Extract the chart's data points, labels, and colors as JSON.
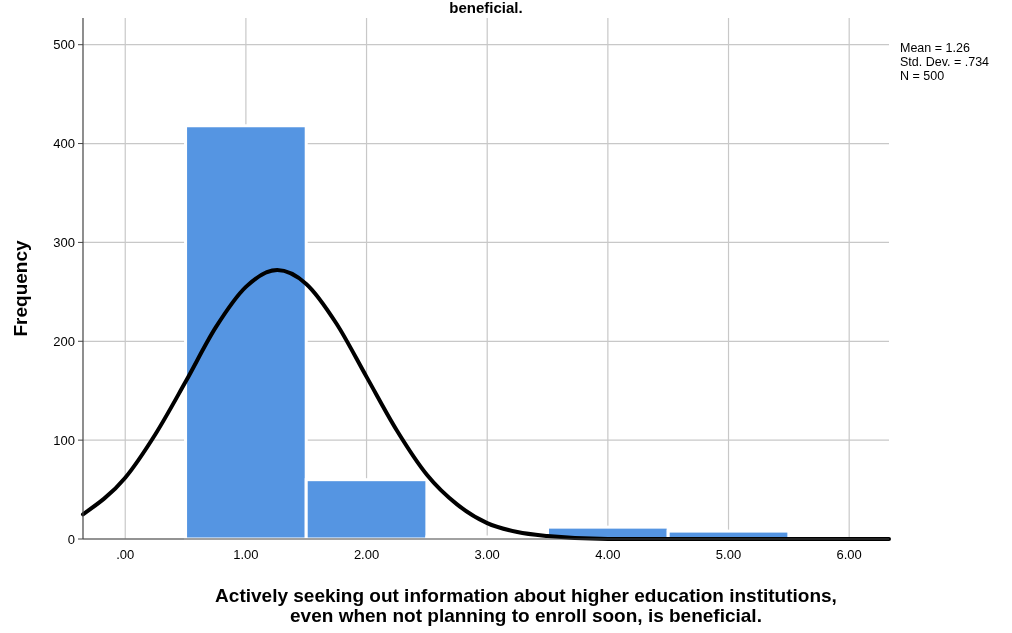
{
  "chart_data": {
    "type": "histogram",
    "title": "beneficial.",
    "xlabel": "Actively seeking out information about higher education institutions,\neven when not planning to enroll soon, is beneficial.",
    "ylabel": "Frequency",
    "bins": [
      0.5,
      1.5,
      2.5,
      3.5,
      4.5,
      5.5
    ],
    "values": [
      418,
      60,
      2,
      12,
      8
    ],
    "color": "#5595e2",
    "series": [
      {
        "type": "line",
        "color": "#000000",
        "x": [
          -0.35,
          0,
          0.25,
          0.5,
          0.75,
          1,
          1.26,
          1.5,
          1.75,
          2,
          2.25,
          2.5,
          2.75,
          3,
          3.25,
          3.5,
          4,
          5,
          6.33
        ],
        "values": [
          25,
          62,
          106,
          159,
          214,
          255,
          272,
          258,
          218,
          164,
          110,
          65,
          35,
          16,
          7,
          3,
          0,
          0,
          0
        ]
      }
    ],
    "xlim": [
      -0.35,
      6.33
    ],
    "ylim": [
      0,
      527
    ],
    "xticks": [
      {
        "value": 0,
        "label": ".00"
      },
      {
        "value": 1,
        "label": "1.00"
      },
      {
        "value": 2,
        "label": "2.00"
      },
      {
        "value": 3,
        "label": "3.00"
      },
      {
        "value": 4,
        "label": "4.00"
      },
      {
        "value": 5,
        "label": "5.00"
      },
      {
        "value": 6,
        "label": "6.00"
      }
    ],
    "yticks": [
      0,
      100,
      200,
      300,
      400,
      500
    ],
    "grid": true,
    "annotations": [
      "Mean = 1.26\nStd. Dev. = .734\nN = 500"
    ]
  }
}
